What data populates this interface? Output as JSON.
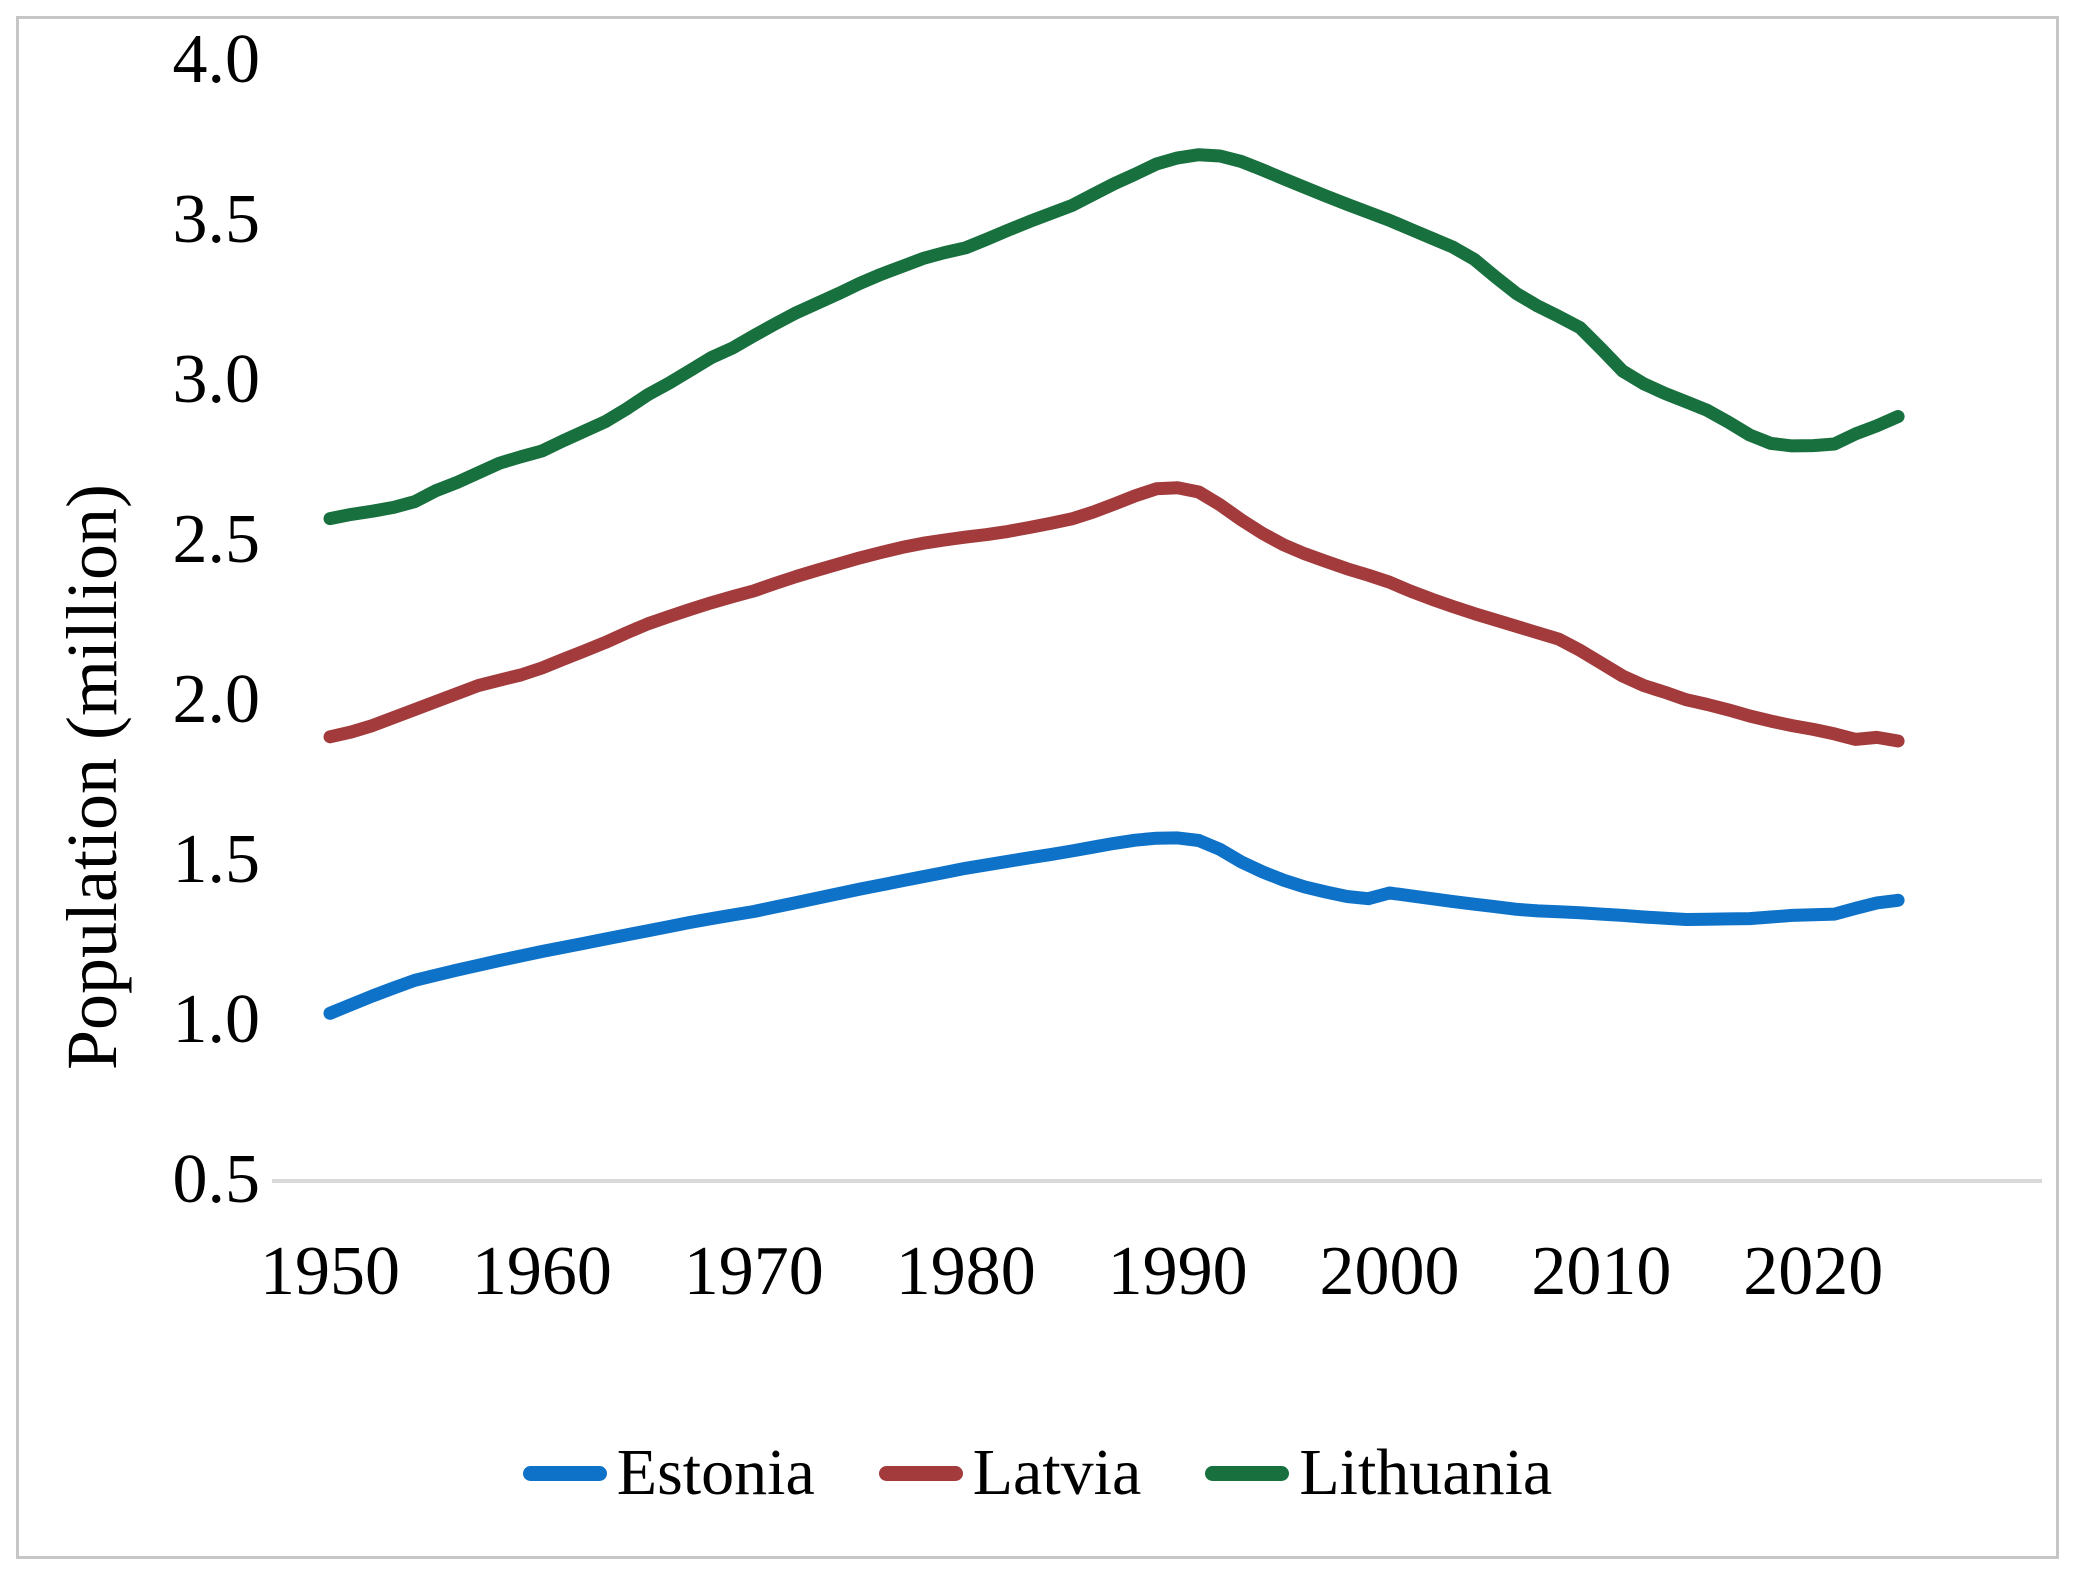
{
  "figure": {
    "y_axis_title": "Population (million)",
    "background": "#ffffff",
    "border_color": "#c6c6c6",
    "axis_line_color": "#d9d9d9"
  },
  "chart_data": {
    "type": "line",
    "title": "",
    "xlabel": "",
    "ylabel": "Population (million)",
    "x_start": 1950,
    "x_end": 2024,
    "x_step": 1,
    "xlim": [
      1950,
      2024
    ],
    "ylim": [
      0.5,
      4.0
    ],
    "grid": false,
    "legend_position": "bottom",
    "x_tick_values": [
      1950,
      1960,
      1970,
      1980,
      1990,
      2000,
      2010,
      2020
    ],
    "x_tick_labels": [
      "1950",
      "1960",
      "1970",
      "1980",
      "1990",
      "2000",
      "2010",
      "2020"
    ],
    "y_tick_values": [
      4.0,
      3.5,
      3.0,
      2.5,
      2.0,
      1.5,
      1.0,
      0.5
    ],
    "y_tick_labels": [
      "4.0",
      "3.5",
      "3.0",
      "2.5",
      "2.0",
      "1.5",
      "1.0",
      "0.5"
    ],
    "series": [
      {
        "name": "Estonia",
        "color": "#0e72c8",
        "values": [
          1.021,
          1.048,
          1.075,
          1.1,
          1.124,
          1.14,
          1.156,
          1.171,
          1.186,
          1.2,
          1.214,
          1.227,
          1.24,
          1.253,
          1.266,
          1.279,
          1.292,
          1.305,
          1.317,
          1.328,
          1.339,
          1.353,
          1.367,
          1.381,
          1.395,
          1.409,
          1.422,
          1.435,
          1.448,
          1.461,
          1.474,
          1.485,
          1.496,
          1.507,
          1.517,
          1.528,
          1.54,
          1.552,
          1.562,
          1.568,
          1.569,
          1.561,
          1.533,
          1.494,
          1.463,
          1.437,
          1.416,
          1.4,
          1.386,
          1.379,
          1.397,
          1.388,
          1.379,
          1.37,
          1.362,
          1.354,
          1.346,
          1.341,
          1.338,
          1.335,
          1.331,
          1.327,
          1.322,
          1.318,
          1.314,
          1.315,
          1.316,
          1.317,
          1.322,
          1.327,
          1.329,
          1.331,
          1.349,
          1.366,
          1.374
        ]
      },
      {
        "name": "Latvia",
        "color": "#a33b3c",
        "values": [
          1.885,
          1.9,
          1.92,
          1.945,
          1.97,
          1.995,
          2.02,
          2.045,
          2.062,
          2.078,
          2.1,
          2.127,
          2.153,
          2.18,
          2.21,
          2.238,
          2.261,
          2.283,
          2.304,
          2.323,
          2.341,
          2.364,
          2.386,
          2.406,
          2.425,
          2.444,
          2.461,
          2.477,
          2.49,
          2.5,
          2.509,
          2.517,
          2.527,
          2.539,
          2.552,
          2.566,
          2.587,
          2.612,
          2.638,
          2.66,
          2.663,
          2.65,
          2.61,
          2.563,
          2.521,
          2.485,
          2.457,
          2.433,
          2.41,
          2.39,
          2.368,
          2.34,
          2.315,
          2.292,
          2.27,
          2.25,
          2.23,
          2.21,
          2.19,
          2.155,
          2.115,
          2.075,
          2.045,
          2.024,
          2.001,
          1.986,
          1.969,
          1.95,
          1.934,
          1.92,
          1.908,
          1.894,
          1.877,
          1.883,
          1.872
        ]
      },
      {
        "name": "Lithuania",
        "color": "#17703e",
        "values": [
          2.567,
          2.58,
          2.59,
          2.602,
          2.62,
          2.654,
          2.68,
          2.71,
          2.74,
          2.76,
          2.778,
          2.81,
          2.84,
          2.87,
          2.91,
          2.954,
          2.99,
          3.03,
          3.07,
          3.1,
          3.138,
          3.175,
          3.21,
          3.24,
          3.27,
          3.302,
          3.33,
          3.355,
          3.38,
          3.398,
          3.413,
          3.44,
          3.468,
          3.495,
          3.52,
          3.545,
          3.579,
          3.613,
          3.643,
          3.675,
          3.694,
          3.704,
          3.7,
          3.683,
          3.657,
          3.629,
          3.602,
          3.575,
          3.549,
          3.524,
          3.499,
          3.471,
          3.443,
          3.415,
          3.377,
          3.322,
          3.27,
          3.231,
          3.198,
          3.163,
          3.097,
          3.028,
          2.988,
          2.958,
          2.932,
          2.905,
          2.868,
          2.828,
          2.802,
          2.794,
          2.795,
          2.8,
          2.832,
          2.857,
          2.886
        ]
      }
    ]
  }
}
